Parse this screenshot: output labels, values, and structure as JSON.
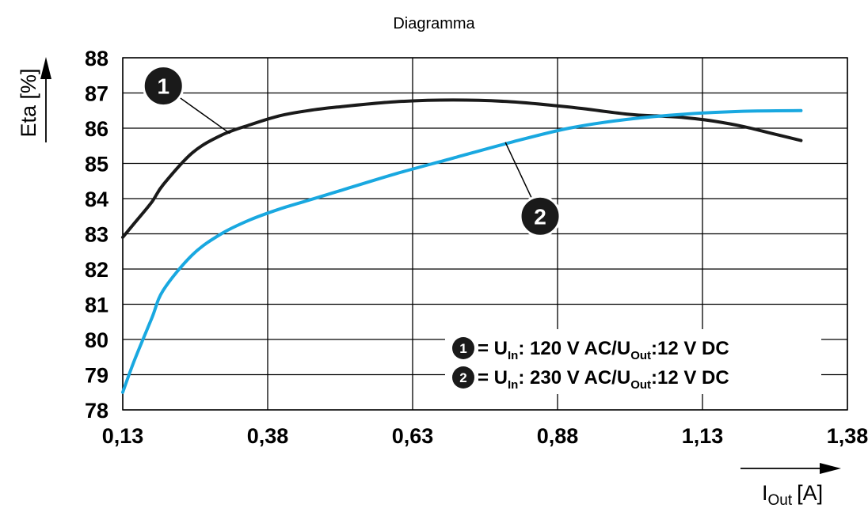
{
  "chart_data": {
    "type": "line",
    "title": "Diagramma",
    "xlabel_main": "I",
    "xlabel_sub": "Out",
    "xlabel_unit": "[A]",
    "ylabel": "Eta [%]",
    "x_ticks": [
      "0,13",
      "0,38",
      "0,63",
      "0,88",
      "1,13",
      "1,38"
    ],
    "y_ticks": [
      "78",
      "79",
      "80",
      "81",
      "82",
      "83",
      "84",
      "85",
      "86",
      "87",
      "88"
    ],
    "xlim": [
      0.13,
      1.38
    ],
    "ylim": [
      78,
      88
    ],
    "grid": true,
    "series": [
      {
        "name": "1",
        "color": "#1a1a1a",
        "x": [
          0.13,
          0.15,
          0.18,
          0.2,
          0.25,
          0.3,
          0.35,
          0.4,
          0.45,
          0.5,
          0.6,
          0.7,
          0.8,
          0.9,
          1.0,
          1.05,
          1.1,
          1.15,
          1.2,
          1.25,
          1.3
        ],
        "y": [
          82.9,
          83.3,
          83.9,
          84.4,
          85.3,
          85.8,
          86.1,
          86.35,
          86.5,
          86.6,
          86.75,
          86.8,
          86.75,
          86.6,
          86.4,
          86.35,
          86.3,
          86.2,
          86.05,
          85.85,
          85.65
        ]
      },
      {
        "name": "2",
        "color": "#19a8e0",
        "x": [
          0.13,
          0.15,
          0.18,
          0.2,
          0.25,
          0.3,
          0.35,
          0.4,
          0.45,
          0.5,
          0.6,
          0.7,
          0.8,
          0.9,
          1.0,
          1.1,
          1.2,
          1.3
        ],
        "y": [
          78.5,
          79.4,
          80.6,
          81.4,
          82.4,
          83.0,
          83.4,
          83.7,
          83.95,
          84.2,
          84.7,
          85.15,
          85.6,
          86.0,
          86.25,
          86.4,
          86.48,
          86.5
        ]
      }
    ],
    "callouts": [
      {
        "label": "1",
        "x": 0.2,
        "y": 87.2,
        "point_x": 0.315,
        "point_y": 85.85
      },
      {
        "label": "2",
        "x": 0.85,
        "y": 83.5,
        "point_x": 0.79,
        "point_y": 85.6
      }
    ],
    "legend": {
      "position": "bottom-right",
      "entries": [
        {
          "num": "1",
          "eq": " = U",
          "in_sub": "In",
          "mid": ": 120 V AC/U",
          "out_sub": "Out",
          "end": ":12 V DC"
        },
        {
          "num": "2",
          "eq": " = U",
          "in_sub": "In",
          "mid": ": 230 V AC/U",
          "out_sub": "Out",
          "end": ":12 V DC"
        }
      ]
    }
  }
}
